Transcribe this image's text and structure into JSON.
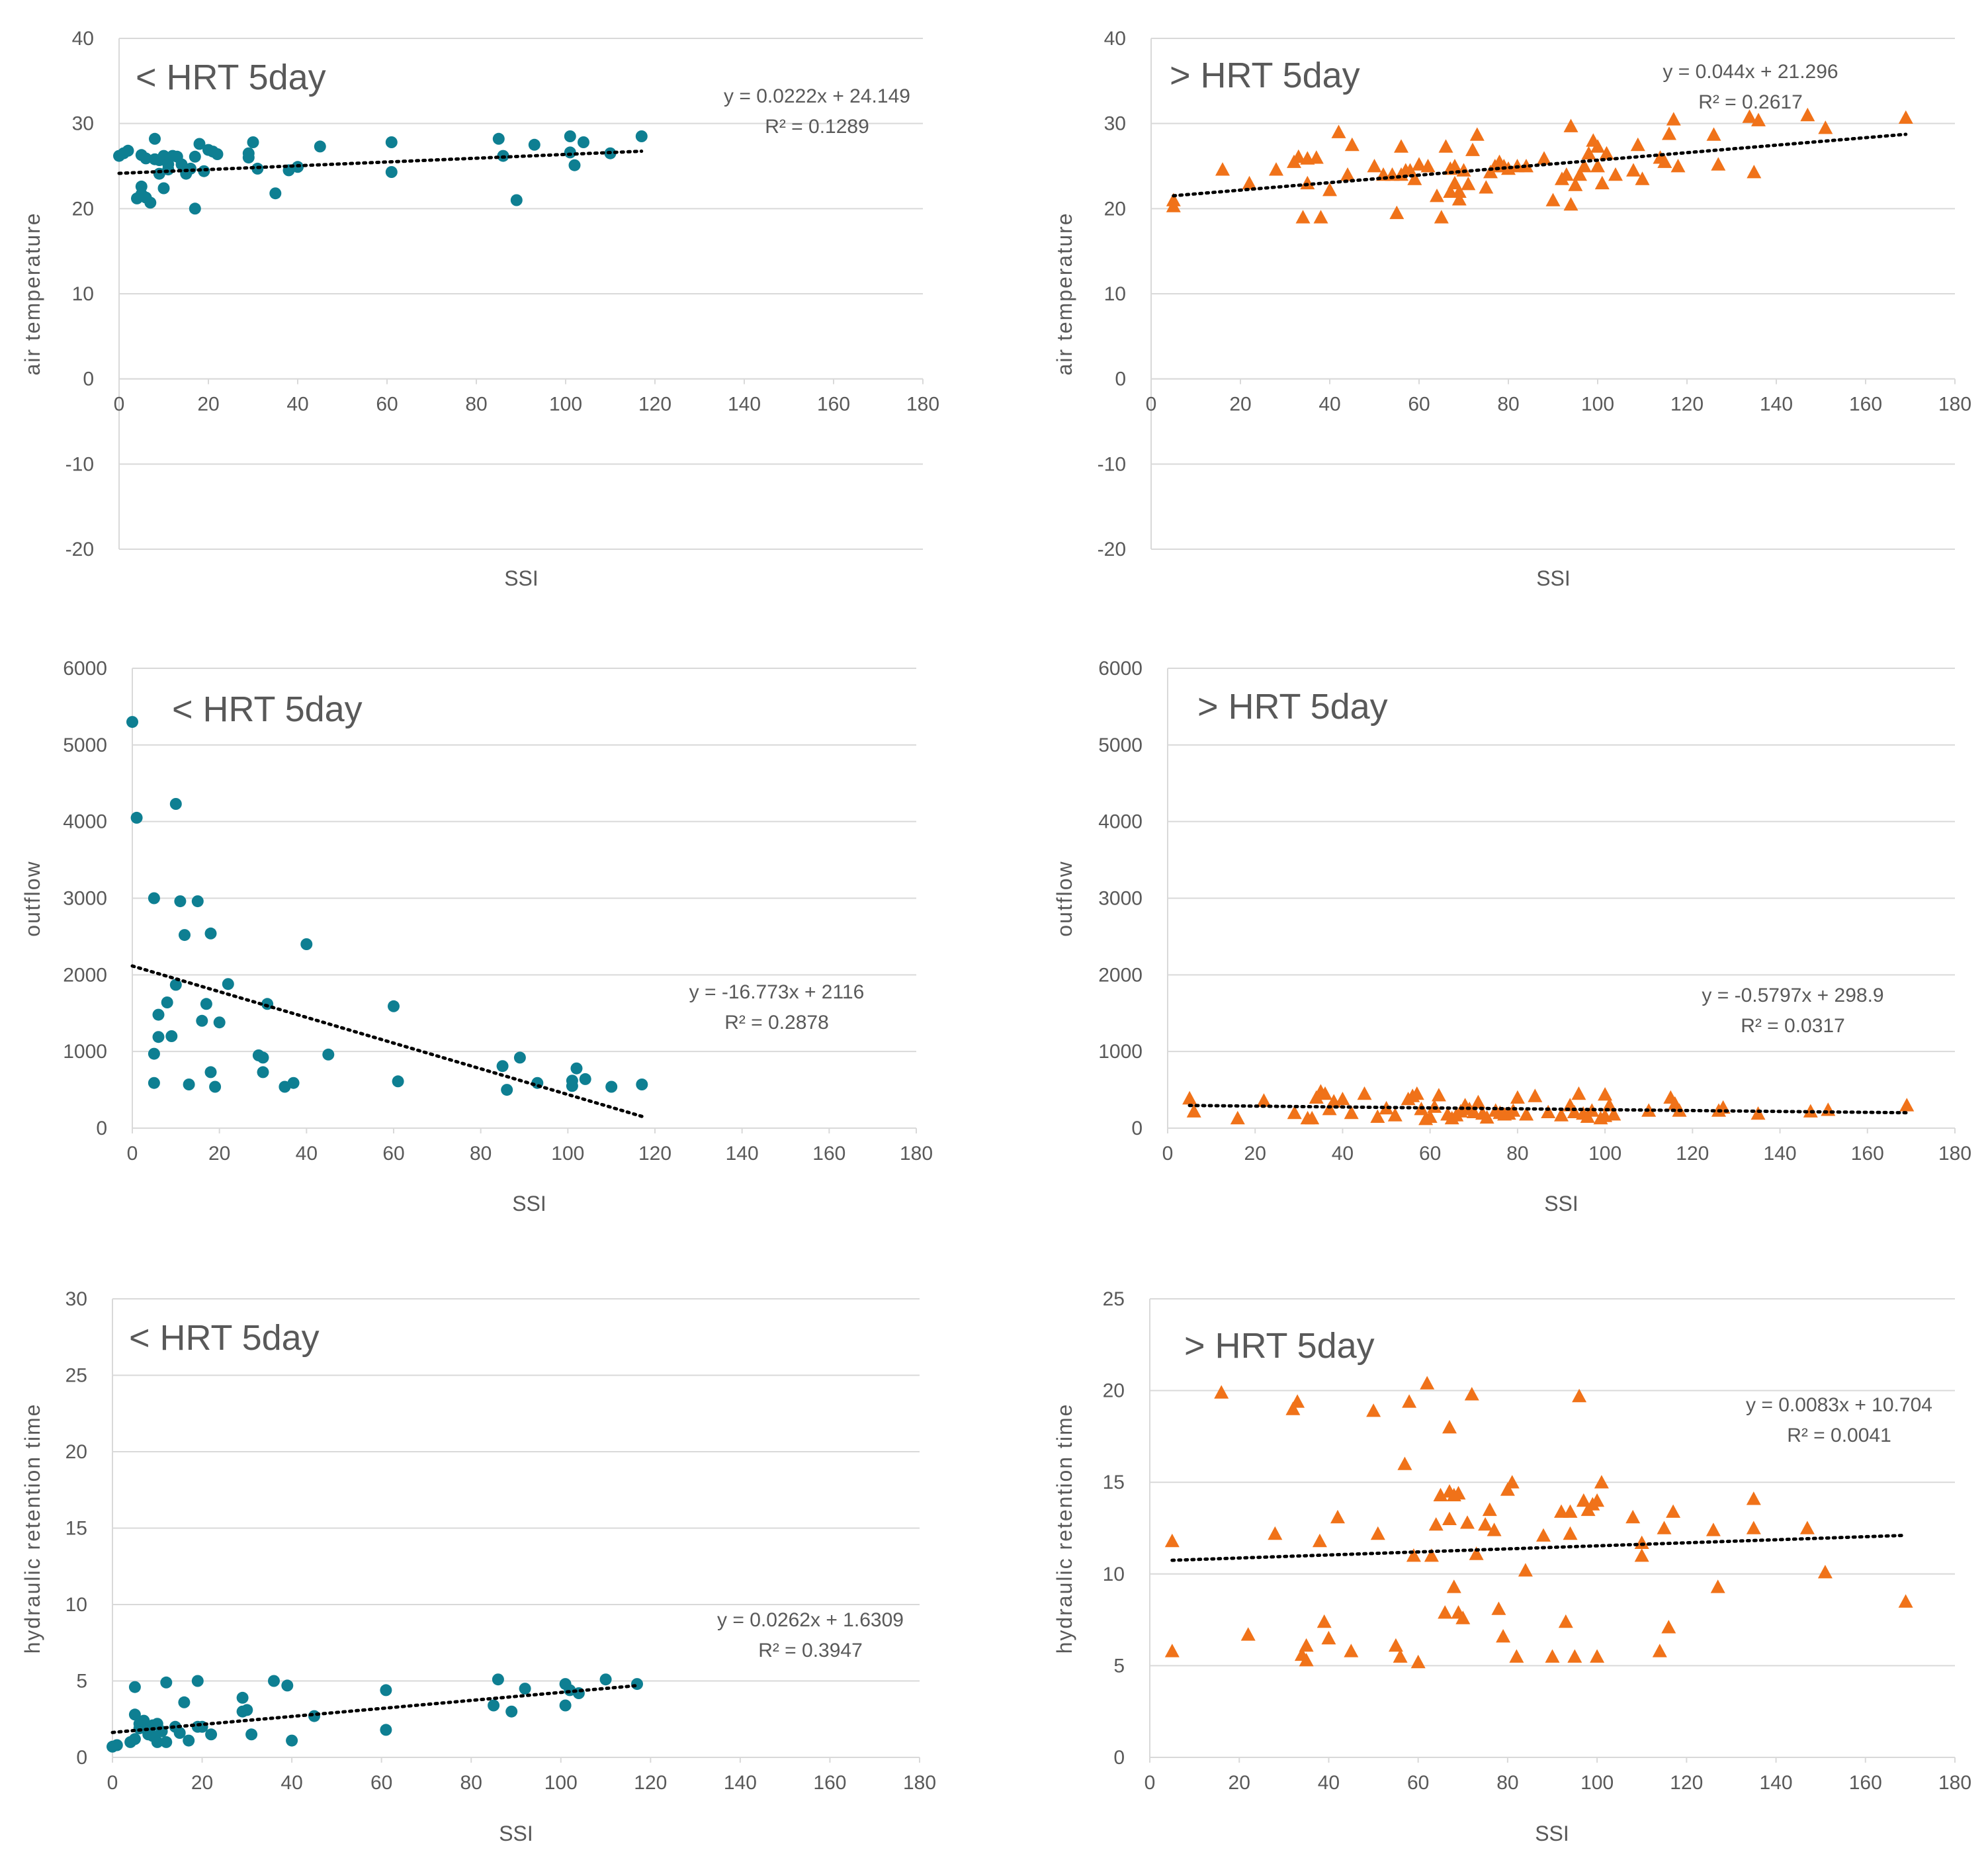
{
  "colors": {
    "teal": "#0e7f92",
    "orange": "#f07219"
  },
  "chart_data": [
    {
      "type": "scatter",
      "title": "< HRT 5day",
      "xlabel": "SSI",
      "ylabel": "air temperature",
      "xlim": [
        0,
        180
      ],
      "ylim": [
        -20,
        40
      ],
      "xticks": [
        "0",
        "20",
        "40",
        "60",
        "80",
        "100",
        "120",
        "140",
        "160",
        "180"
      ],
      "yticks": [
        "-20",
        "-10",
        "0",
        "10",
        "20",
        "30",
        "40"
      ],
      "marker": "circle",
      "color": "#0e7f92",
      "trendline": {
        "slope": 0.0222,
        "intercept": 24.149,
        "x_range": [
          0,
          117
        ]
      },
      "equation": "y = 0.0222x + 24.149",
      "r2": "R² = 0.1289",
      "x": [
        0,
        1,
        2,
        4,
        5,
        5,
        5,
        6,
        6,
        7,
        8,
        8,
        9,
        9,
        10,
        10,
        11,
        11,
        12,
        13,
        14,
        15,
        16,
        17,
        17,
        18,
        19,
        20,
        21,
        22,
        29,
        29,
        30,
        31,
        35,
        38,
        40,
        45,
        61,
        61,
        85,
        86,
        89,
        93,
        101,
        101,
        102,
        104,
        110,
        117
      ],
      "y": [
        26.2,
        26.5,
        26.8,
        21.2,
        22.6,
        26.3,
        21.7,
        21.3,
        25.9,
        20.7,
        25.8,
        28.2,
        24.1,
        25.7,
        26.2,
        22.4,
        25.2,
        24.6,
        26.2,
        26.1,
        25.2,
        24.1,
        24.7,
        26.1,
        20.0,
        27.6,
        24.4,
        26.9,
        26.7,
        26.4,
        26.0,
        26.5,
        27.8,
        24.7,
        21.8,
        24.5,
        24.9,
        27.3,
        27.8,
        24.3,
        28.2,
        26.2,
        21.0,
        27.5,
        28.5,
        26.6,
        25.1,
        27.8,
        26.5,
        28.5
      ]
    },
    {
      "type": "scatter",
      "title": "> HRT 5day",
      "xlabel": "SSI",
      "ylabel": "air temperature",
      "xlim": [
        0,
        180
      ],
      "ylim": [
        -20,
        40
      ],
      "xticks": [
        "0",
        "20",
        "40",
        "60",
        "80",
        "100",
        "120",
        "140",
        "160",
        "180"
      ],
      "yticks": [
        "-20",
        "-10",
        "0",
        "10",
        "20",
        "30",
        "40"
      ],
      "marker": "triangle",
      "color": "#f07219",
      "trendline": {
        "slope": 0.044,
        "intercept": 21.296,
        "x_range": [
          5,
          169
        ]
      },
      "equation": "y = 0.044x + 21.296",
      "r2": "R² = 0.2617",
      "x": [
        5,
        5,
        16,
        22,
        28,
        32,
        33,
        34,
        35,
        35,
        37,
        38,
        40,
        42,
        44,
        45,
        50,
        52,
        54,
        55,
        56,
        56,
        57,
        58,
        59,
        60,
        62,
        64,
        65,
        66,
        67,
        67,
        68,
        68,
        69,
        69,
        70,
        71,
        72,
        73,
        75,
        76,
        77,
        78,
        79,
        80,
        82,
        84,
        88,
        90,
        92,
        93,
        94,
        94,
        95,
        96,
        97,
        98,
        99,
        100,
        100,
        101,
        102,
        104,
        108,
        109,
        110,
        114,
        115,
        116,
        117,
        118,
        126,
        127,
        134,
        135,
        136,
        147,
        151,
        169
      ],
      "y": [
        21,
        20.3,
        24.6,
        23,
        24.6,
        25.5,
        26.1,
        19,
        23,
        25.9,
        26,
        19,
        22.2,
        29,
        24,
        27.5,
        25,
        24,
        24,
        19.5,
        27.3,
        24,
        24.5,
        24.5,
        23.5,
        25.2,
        25,
        21.5,
        19,
        27.3,
        22,
        24.7,
        25,
        23,
        22,
        21.1,
        24.5,
        22.9,
        26.9,
        28.7,
        22.5,
        24.3,
        25,
        25.5,
        25,
        24.7,
        25,
        25,
        25.9,
        21,
        23.5,
        24,
        29.7,
        20.5,
        22.8,
        24,
        25,
        26.5,
        28,
        25,
        27.3,
        23,
        26.5,
        24,
        24.5,
        27.5,
        23.5,
        26,
        25.5,
        28.8,
        30.5,
        25,
        28.7,
        25.2,
        30.8,
        24.3,
        30.4,
        31,
        29.5,
        30.7
      ]
    },
    {
      "type": "scatter",
      "title": "< HRT 5day",
      "xlabel": "SSI",
      "ylabel": "outflow",
      "xlim": [
        0,
        180
      ],
      "ylim": [
        0,
        6000
      ],
      "xticks": [
        "0",
        "20",
        "40",
        "60",
        "80",
        "100",
        "120",
        "140",
        "160",
        "180"
      ],
      "yticks": [
        "0",
        "1000",
        "2000",
        "3000",
        "4000",
        "5000",
        "6000"
      ],
      "marker": "circle",
      "color": "#0e7f92",
      "trendline": {
        "slope": -16.773,
        "intercept": 2116,
        "x_range": [
          0,
          117
        ]
      },
      "equation": "y = -16.773x + 2116",
      "r2": "R² = 0.2878",
      "x": [
        0,
        1,
        5,
        5,
        5,
        6,
        6,
        8,
        9,
        10,
        10,
        11,
        12,
        13,
        15,
        16,
        17,
        18,
        18,
        19,
        20,
        22,
        29,
        30,
        30,
        31,
        35,
        37,
        40,
        45,
        60,
        61,
        85,
        86,
        89,
        93,
        101,
        101,
        102,
        104,
        110,
        117
      ],
      "y": [
        5300,
        4050,
        970,
        590,
        3000,
        1480,
        1190,
        1640,
        1200,
        1870,
        4230,
        2960,
        2520,
        570,
        2960,
        1400,
        1620,
        730,
        2540,
        540,
        1380,
        1880,
        950,
        730,
        920,
        1620,
        540,
        590,
        2400,
        960,
        1590,
        610,
        810,
        500,
        920,
        590,
        550,
        620,
        780,
        640,
        540,
        570
      ]
    },
    {
      "type": "scatter",
      "title": "> HRT 5day",
      "xlabel": "SSI",
      "ylabel": "outflow",
      "xlim": [
        0,
        180
      ],
      "ylim": [
        0,
        6000
      ],
      "xticks": [
        "0",
        "20",
        "40",
        "60",
        "80",
        "100",
        "120",
        "140",
        "160",
        "180"
      ],
      "yticks": [
        "0",
        "1000",
        "2000",
        "3000",
        "4000",
        "5000",
        "6000"
      ],
      "marker": "triangle",
      "color": "#f07219",
      "trendline": {
        "slope": -0.5797,
        "intercept": 298.9,
        "x_range": [
          5,
          169
        ]
      },
      "equation": "y = -0.5797x + 298.9",
      "r2": "R² = 0.0317",
      "x": [
        5,
        6,
        16,
        22,
        29,
        32,
        33,
        34,
        35,
        36,
        37,
        38,
        40,
        42,
        45,
        48,
        50,
        52,
        55,
        56,
        57,
        58,
        59,
        60,
        61,
        62,
        64,
        65,
        66,
        67,
        68,
        69,
        70,
        71,
        72,
        73,
        75,
        76,
        77,
        78,
        79,
        80,
        82,
        84,
        87,
        90,
        92,
        93,
        94,
        95,
        96,
        97,
        99,
        100,
        100,
        101,
        102,
        110,
        115,
        116,
        117,
        126,
        127,
        135,
        147,
        151,
        169
      ],
      "y": [
        390,
        220,
        130,
        360,
        200,
        130,
        130,
        400,
        480,
        450,
        250,
        350,
        380,
        200,
        450,
        150,
        260,
        170,
        380,
        420,
        450,
        250,
        120,
        150,
        280,
        430,
        180,
        130,
        170,
        220,
        300,
        250,
        210,
        340,
        190,
        140,
        230,
        200,
        180,
        190,
        230,
        400,
        180,
        420,
        210,
        170,
        300,
        210,
        450,
        190,
        150,
        230,
        130,
        440,
        160,
        300,
        180,
        230,
        400,
        320,
        230,
        230,
        270,
        190,
        220,
        240,
        300
      ]
    },
    {
      "type": "scatter",
      "title": "< HRT 5day",
      "xlabel": "SSI",
      "ylabel": "hydraulic retention time",
      "xlim": [
        0,
        180
      ],
      "ylim": [
        0,
        30
      ],
      "xticks": [
        "0",
        "20",
        "40",
        "60",
        "80",
        "100",
        "120",
        "140",
        "160",
        "180"
      ],
      "yticks": [
        "0",
        "5",
        "10",
        "15",
        "20",
        "25",
        "30"
      ],
      "marker": "circle",
      "color": "#0e7f92",
      "trendline": {
        "slope": 0.0262,
        "intercept": 1.6309,
        "x_range": [
          0,
          117
        ]
      },
      "equation": "y = 0.0262x + 1.6309",
      "r2": "R² = 0.3947",
      "x": [
        0,
        1,
        4,
        5,
        5,
        5,
        6,
        6,
        7,
        8,
        8,
        9,
        9,
        10,
        10,
        11,
        12,
        12,
        14,
        15,
        16,
        17,
        19,
        19,
        20,
        22,
        29,
        29,
        30,
        31,
        36,
        39,
        40,
        45,
        61,
        61,
        85,
        86,
        89,
        92,
        101,
        101,
        102,
        104,
        110,
        117
      ],
      "y": [
        0.7,
        0.8,
        1.0,
        4.6,
        2.8,
        1.2,
        2.2,
        1.9,
        2.4,
        1.8,
        1.5,
        2.1,
        1.4,
        1.0,
        2.2,
        1.7,
        1.0,
        4.9,
        2.0,
        1.6,
        3.6,
        1.1,
        5.0,
        2.0,
        2.0,
        1.5,
        3.0,
        3.9,
        3.1,
        1.5,
        5.0,
        4.7,
        1.1,
        2.7,
        1.8,
        4.4,
        3.4,
        5.1,
        3.0,
        4.5,
        4.8,
        3.4,
        4.4,
        4.2,
        5.1,
        4.8
      ]
    },
    {
      "type": "scatter",
      "title": "> HRT 5day",
      "xlabel": "SSI",
      "ylabel": "hydraulic retention time",
      "xlim": [
        0,
        180
      ],
      "ylim": [
        0,
        25
      ],
      "xticks": [
        "0",
        "20",
        "40",
        "60",
        "80",
        "100",
        "120",
        "140",
        "160",
        "180"
      ],
      "yticks": [
        "0",
        "5",
        "10",
        "15",
        "20",
        "25"
      ],
      "marker": "triangle",
      "color": "#f07219",
      "trendline": {
        "slope": 0.0083,
        "intercept": 10.704,
        "x_range": [
          5,
          169
        ]
      },
      "equation": "y = 0.0083x + 10.704",
      "r2": "R² = 0.0041",
      "x": [
        5,
        5,
        16,
        22,
        28,
        32,
        33,
        34,
        35,
        35,
        38,
        39,
        40,
        42,
        45,
        50,
        51,
        55,
        56,
        57,
        58,
        59,
        60,
        62,
        63,
        64,
        65,
        66,
        67,
        67,
        67,
        68,
        68,
        69,
        69,
        70,
        71,
        72,
        73,
        75,
        76,
        77,
        78,
        79,
        80,
        81,
        82,
        84,
        88,
        90,
        92,
        93,
        94,
        94,
        95,
        96,
        97,
        98,
        99,
        100,
        100,
        101,
        108,
        110,
        110,
        114,
        115,
        116,
        117,
        126,
        127,
        135,
        135,
        147,
        151,
        169
      ],
      "y": [
        11.8,
        5.8,
        19.9,
        6.7,
        12.2,
        19.0,
        19.4,
        5.6,
        5.3,
        6.1,
        11.8,
        7.4,
        6.5,
        13.1,
        5.8,
        18.9,
        12.2,
        6.1,
        5.5,
        16.0,
        19.4,
        11.0,
        5.2,
        20.4,
        11.0,
        12.7,
        14.3,
        7.9,
        13.0,
        14.5,
        18.0,
        9.3,
        14.3,
        14.4,
        7.9,
        7.6,
        12.8,
        19.8,
        11.1,
        12.7,
        13.5,
        12.4,
        8.1,
        6.6,
        14.6,
        15.0,
        5.5,
        10.2,
        12.1,
        5.5,
        13.4,
        7.4,
        13.4,
        12.2,
        5.5,
        19.7,
        14.0,
        13.5,
        13.8,
        5.5,
        14.0,
        15.0,
        13.1,
        11.0,
        11.7,
        5.8,
        12.5,
        7.1,
        13.4,
        12.4,
        9.3,
        14.1,
        12.5,
        12.5,
        10.1,
        8.5
      ]
    }
  ]
}
